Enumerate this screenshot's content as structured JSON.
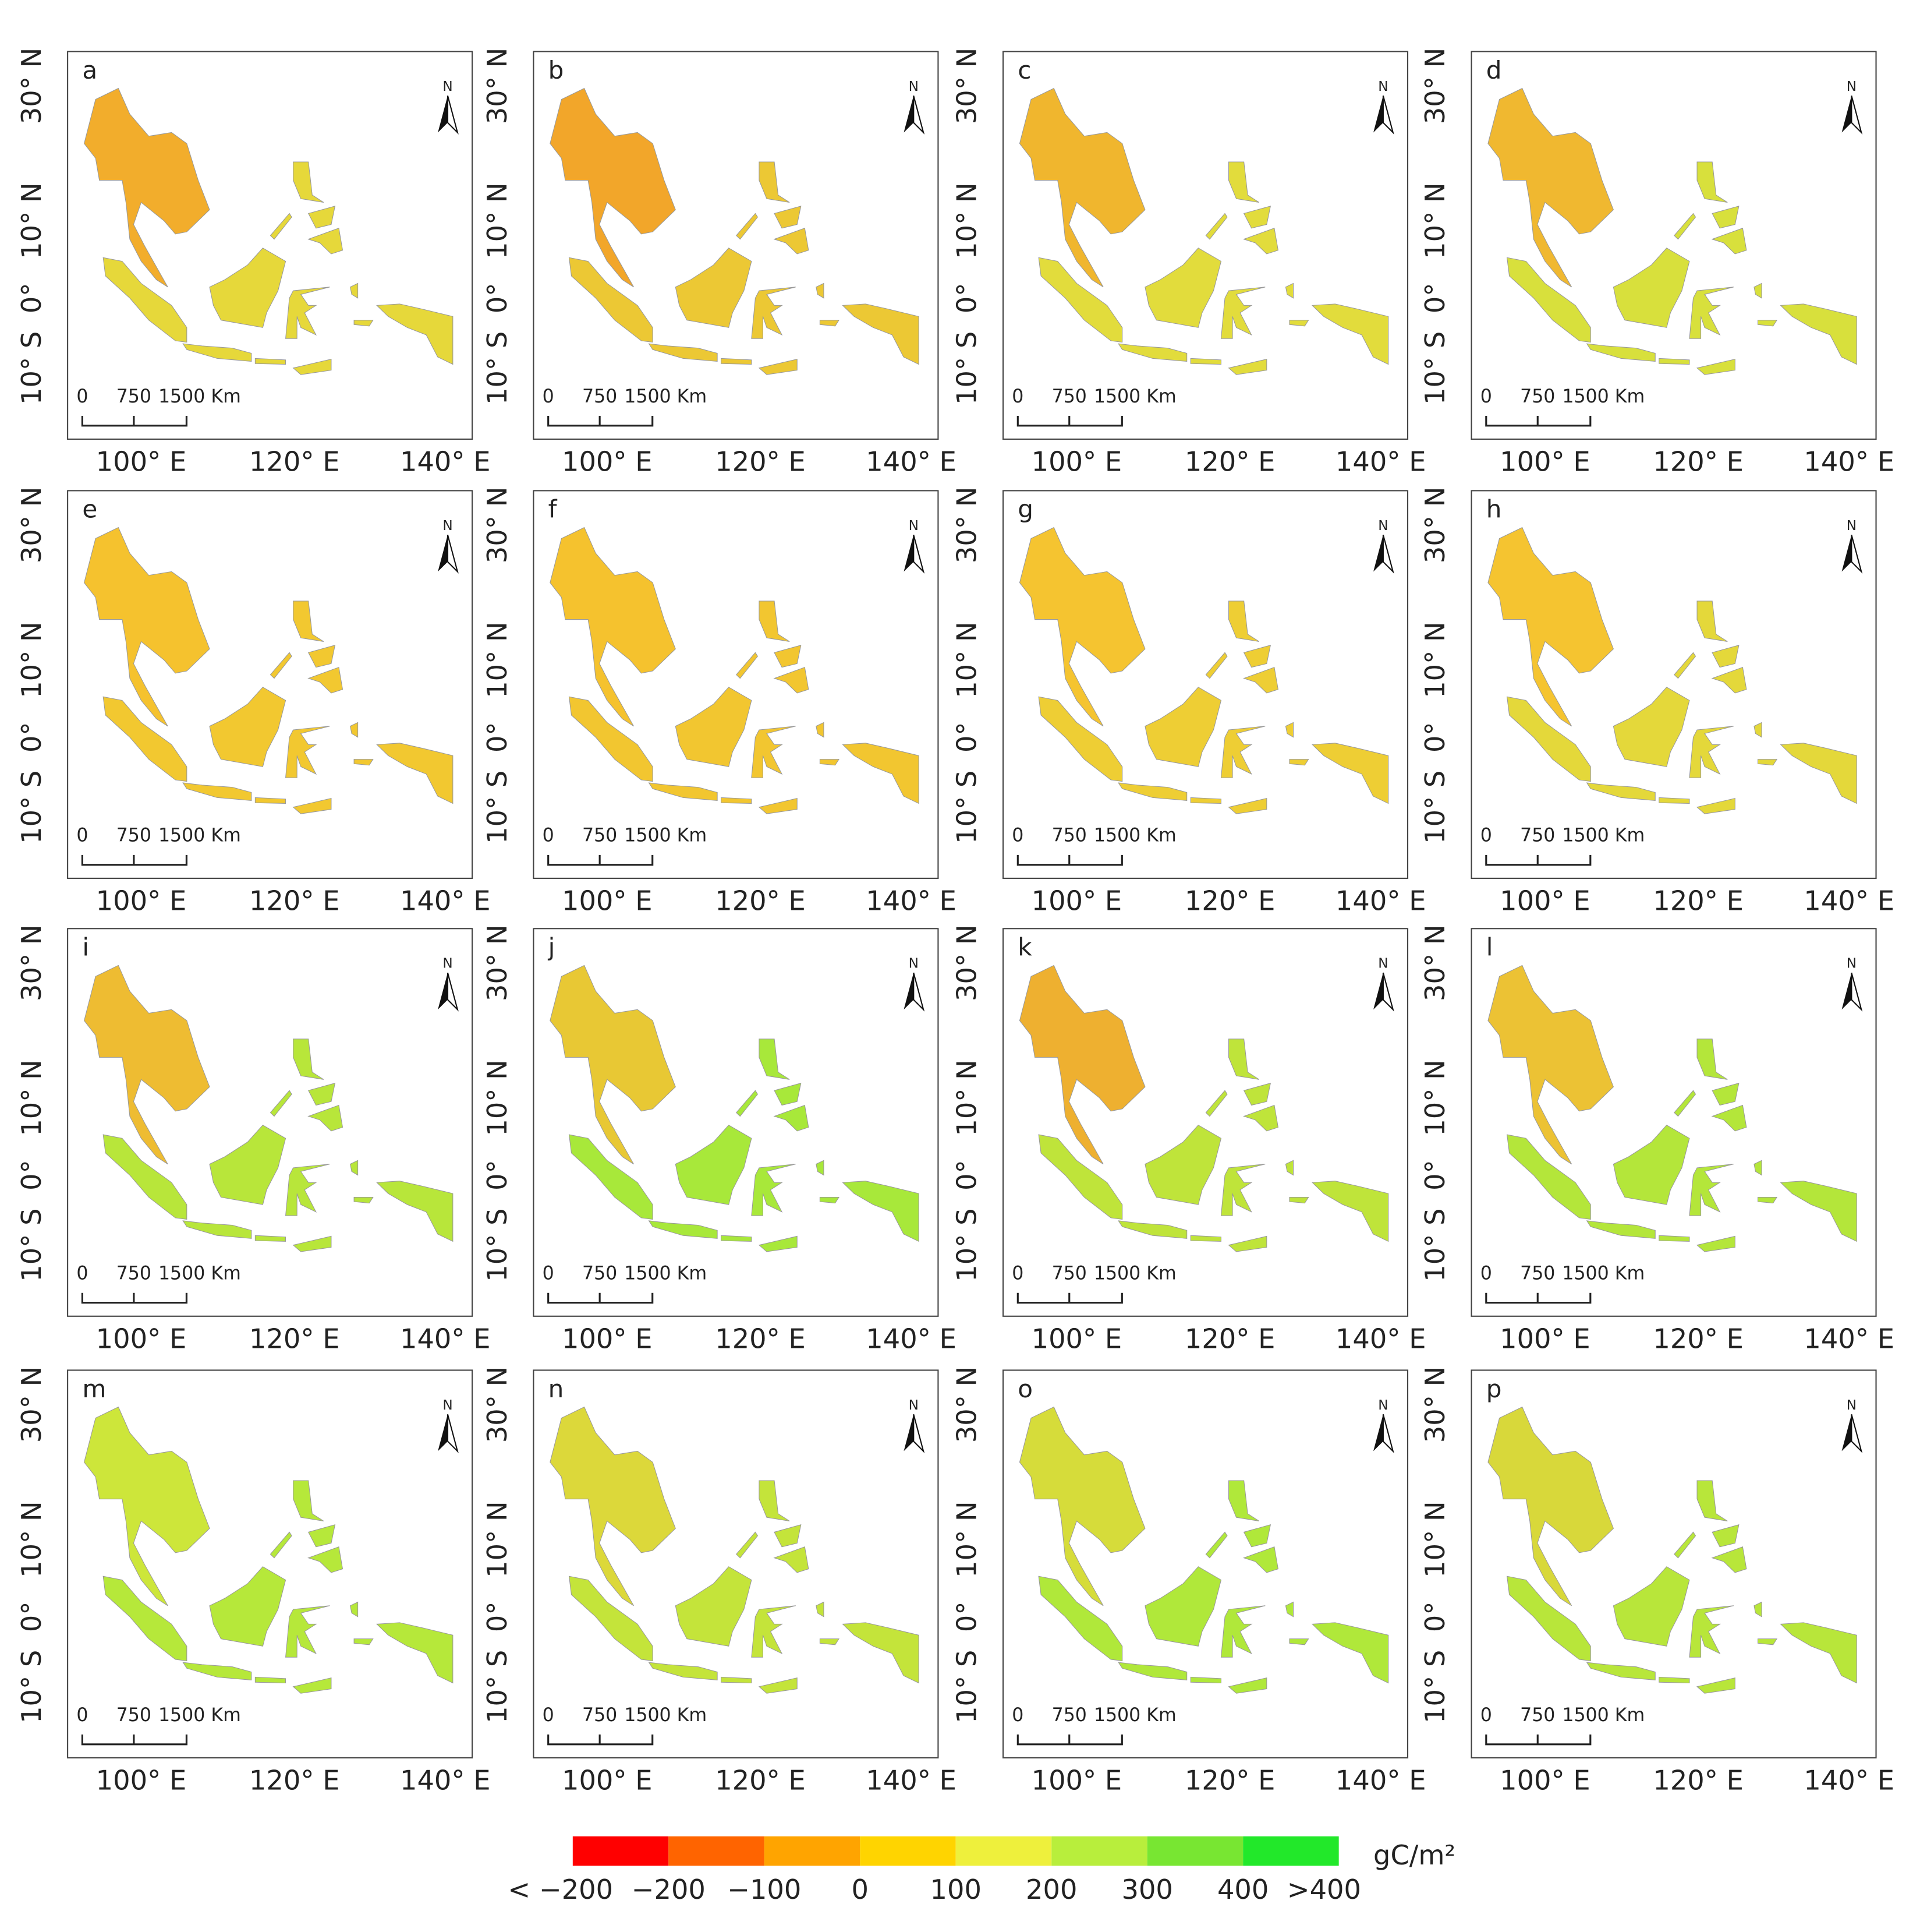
{
  "axes": {
    "y_labels": [
      "30° N",
      "10° N",
      "0°",
      "10° S"
    ],
    "x_labels": [
      "100° E",
      "120° E",
      "140° E"
    ],
    "scale_bar": [
      "0",
      "750",
      "1500 Km"
    ],
    "north": "N"
  },
  "panels": [
    {
      "label": "a",
      "land": "#e6d83a",
      "mainland": "#f2ad2c"
    },
    {
      "label": "b",
      "land": "#ecc834",
      "mainland": "#f2a62a"
    },
    {
      "label": "c",
      "land": "#e2dc3c",
      "mainland": "#f0b62e"
    },
    {
      "label": "d",
      "land": "#d8e03c",
      "mainland": "#f0b830"
    },
    {
      "label": "e",
      "land": "#f2c830",
      "mainland": "#f5c22e"
    },
    {
      "label": "f",
      "land": "#f2c630",
      "mainland": "#f5c22e"
    },
    {
      "label": "g",
      "land": "#eece34",
      "mainland": "#f5c430"
    },
    {
      "label": "h",
      "land": "#e4d83a",
      "mainland": "#f5c430"
    },
    {
      "label": "i",
      "land": "#b8e63a",
      "mainland": "#eebc32"
    },
    {
      "label": "j",
      "land": "#a8e83a",
      "mainland": "#e8c834"
    },
    {
      "label": "k",
      "land": "#bfe43a",
      "mainland": "#eeb030"
    },
    {
      "label": "l",
      "land": "#b4e63a",
      "mainland": "#ecc234"
    },
    {
      "label": "m",
      "land": "#b6e83a",
      "mainland": "#cde63a"
    },
    {
      "label": "n",
      "land": "#c4e43a",
      "mainland": "#dcd83a"
    },
    {
      "label": "o",
      "land": "#b0e83a",
      "mainland": "#d6dc3a"
    },
    {
      "label": "p",
      "land": "#b8e63a",
      "mainland": "#d8d83a"
    }
  ],
  "legend": {
    "colors": [
      "#ff0000",
      "#ff6400",
      "#ffa400",
      "#ffd400",
      "#eef03c",
      "#b8ee3c",
      "#78e632",
      "#22e82a"
    ],
    "labels": [
      "< −200",
      "−200",
      "−100",
      "0",
      "100",
      "200",
      "300",
      "400",
      ">400"
    ],
    "unit": "gC/m²"
  }
}
